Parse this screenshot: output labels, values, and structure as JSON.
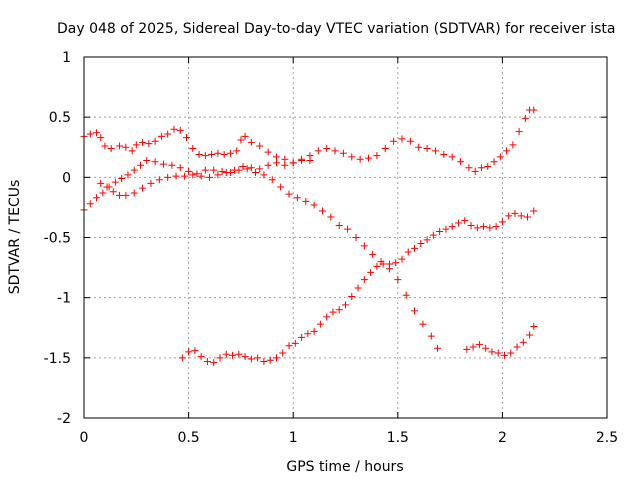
{
  "chart_data": {
    "type": "scatter",
    "title": "Day 048 of 2025, Sidereal Day-to-day VTEC variation (SDTVAR) for receiver ista",
    "xlabel": "GPS time / hours",
    "ylabel": "SDTVAR / TECUs",
    "xlim": [
      0,
      2.5
    ],
    "ylim": [
      -2,
      1
    ],
    "xticks": [
      "0",
      "0.5",
      "1",
      "1.5",
      "2",
      "2.5"
    ],
    "yticks": [
      "-2",
      "-1.5",
      "-1",
      "-0.5",
      "0",
      "0.5",
      "1"
    ],
    "grid": true,
    "marker": "+",
    "marker_color": "#ff0000",
    "series": [
      {
        "points": [
          [
            0.0,
            0.34
          ],
          [
            0.03,
            0.36
          ],
          [
            0.06,
            0.37
          ],
          [
            0.08,
            0.33
          ],
          [
            0.1,
            0.26
          ],
          [
            0.13,
            0.24
          ],
          [
            0.17,
            0.26
          ],
          [
            0.2,
            0.25
          ],
          [
            0.23,
            0.22
          ],
          [
            0.25,
            0.27
          ],
          [
            0.28,
            0.29
          ],
          [
            0.31,
            0.28
          ],
          [
            0.34,
            0.3
          ],
          [
            0.37,
            0.34
          ],
          [
            0.4,
            0.36
          ],
          [
            0.43,
            0.4
          ],
          [
            0.46,
            0.39
          ],
          [
            0.49,
            0.33
          ],
          [
            0.52,
            0.24
          ],
          [
            0.55,
            0.19
          ],
          [
            0.58,
            0.18
          ],
          [
            0.61,
            0.19
          ],
          [
            0.64,
            0.2
          ],
          [
            0.67,
            0.19
          ],
          [
            0.7,
            0.2
          ],
          [
            0.73,
            0.22
          ],
          [
            0.75,
            0.31
          ],
          [
            0.77,
            0.34
          ],
          [
            0.8,
            0.29
          ],
          [
            0.84,
            0.26
          ],
          [
            0.88,
            0.21
          ],
          [
            0.92,
            0.17
          ],
          [
            0.96,
            0.15
          ],
          [
            1.0,
            0.12
          ],
          [
            1.04,
            0.14
          ],
          [
            1.08,
            0.18
          ],
          [
            1.12,
            0.22
          ],
          [
            1.16,
            0.24
          ],
          [
            1.2,
            0.22
          ],
          [
            1.24,
            0.2
          ],
          [
            1.28,
            0.17
          ],
          [
            1.32,
            0.15
          ],
          [
            1.36,
            0.16
          ],
          [
            1.4,
            0.18
          ],
          [
            1.44,
            0.24
          ],
          [
            1.48,
            0.3
          ],
          [
            1.52,
            0.32
          ],
          [
            1.56,
            0.3
          ],
          [
            1.6,
            0.25
          ],
          [
            1.64,
            0.24
          ],
          [
            1.68,
            0.22
          ],
          [
            1.72,
            0.19
          ],
          [
            1.76,
            0.17
          ],
          [
            1.8,
            0.13
          ],
          [
            1.84,
            0.08
          ],
          [
            1.87,
            0.05
          ],
          [
            1.9,
            0.08
          ],
          [
            1.93,
            0.09
          ],
          [
            1.96,
            0.13
          ],
          [
            1.99,
            0.17
          ],
          [
            2.02,
            0.22
          ],
          [
            2.05,
            0.27
          ],
          [
            2.08,
            0.38
          ],
          [
            2.11,
            0.49
          ],
          [
            2.13,
            0.56
          ],
          [
            2.15,
            0.56
          ]
        ]
      },
      {
        "points": [
          [
            0.0,
            -0.27
          ],
          [
            0.03,
            -0.22
          ],
          [
            0.06,
            -0.17
          ],
          [
            0.09,
            -0.13
          ],
          [
            0.12,
            -0.08
          ],
          [
            0.15,
            -0.04
          ],
          [
            0.18,
            -0.01
          ],
          [
            0.21,
            0.02
          ],
          [
            0.24,
            0.06
          ],
          [
            0.27,
            0.1
          ],
          [
            0.3,
            0.14
          ],
          [
            0.34,
            0.13
          ],
          [
            0.38,
            0.11
          ],
          [
            0.42,
            0.1
          ],
          [
            0.46,
            0.08
          ],
          [
            0.5,
            0.05
          ],
          [
            0.54,
            0.03
          ],
          [
            0.58,
            0.06
          ],
          [
            0.62,
            0.06
          ],
          [
            0.66,
            0.05
          ],
          [
            0.7,
            0.04
          ],
          [
            0.74,
            0.06
          ],
          [
            0.78,
            0.07
          ],
          [
            0.82,
            0.04
          ],
          [
            0.86,
            0.02
          ],
          [
            0.9,
            -0.02
          ],
          [
            0.94,
            -0.08
          ],
          [
            0.98,
            -0.14
          ],
          [
            1.02,
            -0.17
          ],
          [
            1.06,
            -0.2
          ],
          [
            1.1,
            -0.23
          ],
          [
            1.14,
            -0.28
          ],
          [
            1.18,
            -0.33
          ],
          [
            1.22,
            -0.4
          ],
          [
            1.26,
            -0.43
          ],
          [
            1.3,
            -0.5
          ],
          [
            1.34,
            -0.57
          ],
          [
            1.38,
            -0.64
          ],
          [
            1.42,
            -0.7
          ],
          [
            1.46,
            -0.76
          ],
          [
            1.5,
            -0.85
          ],
          [
            1.54,
            -0.98
          ],
          [
            1.58,
            -1.11
          ],
          [
            1.62,
            -1.22
          ],
          [
            1.66,
            -1.32
          ],
          [
            1.69,
            -1.42
          ]
        ]
      },
      {
        "points": [
          [
            0.08,
            -0.05
          ],
          [
            0.11,
            -0.08
          ],
          [
            0.14,
            -0.12
          ],
          [
            0.17,
            -0.15
          ],
          [
            0.2,
            -0.15
          ],
          [
            0.24,
            -0.13
          ],
          [
            0.28,
            -0.09
          ],
          [
            0.32,
            -0.05
          ],
          [
            0.36,
            -0.02
          ],
          [
            0.4,
            0.0
          ],
          [
            0.44,
            0.01
          ],
          [
            0.48,
            0.01
          ],
          [
            0.52,
            0.02
          ],
          [
            0.56,
            0.01
          ],
          [
            0.6,
            0.0
          ],
          [
            0.64,
            0.02
          ],
          [
            0.68,
            0.04
          ],
          [
            0.72,
            0.06
          ],
          [
            0.76,
            0.09
          ],
          [
            0.8,
            0.08
          ],
          [
            0.84,
            0.07
          ],
          [
            0.88,
            0.1
          ],
          [
            0.92,
            0.12
          ],
          [
            0.96,
            0.1
          ],
          [
            1.0,
            0.12
          ],
          [
            1.04,
            0.15
          ],
          [
            1.08,
            0.14
          ]
        ]
      },
      {
        "points": [
          [
            0.47,
            -1.5
          ],
          [
            0.5,
            -1.45
          ],
          [
            0.53,
            -1.44
          ],
          [
            0.56,
            -1.49
          ],
          [
            0.59,
            -1.53
          ],
          [
            0.62,
            -1.54
          ],
          [
            0.65,
            -1.5
          ],
          [
            0.68,
            -1.47
          ],
          [
            0.71,
            -1.48
          ],
          [
            0.74,
            -1.47
          ],
          [
            0.77,
            -1.49
          ],
          [
            0.8,
            -1.51
          ],
          [
            0.83,
            -1.5
          ],
          [
            0.86,
            -1.53
          ],
          [
            0.89,
            -1.52
          ],
          [
            0.92,
            -1.5
          ],
          [
            0.95,
            -1.46
          ],
          [
            0.98,
            -1.4
          ],
          [
            1.01,
            -1.38
          ],
          [
            1.04,
            -1.33
          ],
          [
            1.07,
            -1.3
          ],
          [
            1.1,
            -1.28
          ],
          [
            1.13,
            -1.22
          ],
          [
            1.16,
            -1.16
          ],
          [
            1.19,
            -1.12
          ],
          [
            1.22,
            -1.1
          ],
          [
            1.25,
            -1.06
          ],
          [
            1.28,
            -0.99
          ],
          [
            1.31,
            -0.92
          ],
          [
            1.34,
            -0.85
          ],
          [
            1.37,
            -0.79
          ],
          [
            1.4,
            -0.74
          ],
          [
            1.43,
            -0.72
          ],
          [
            1.46,
            -0.72
          ],
          [
            1.49,
            -0.71
          ],
          [
            1.52,
            -0.68
          ],
          [
            1.55,
            -0.62
          ],
          [
            1.58,
            -0.59
          ],
          [
            1.61,
            -0.55
          ],
          [
            1.64,
            -0.52
          ],
          [
            1.67,
            -0.48
          ],
          [
            1.7,
            -0.45
          ],
          [
            1.73,
            -0.43
          ],
          [
            1.76,
            -0.41
          ],
          [
            1.79,
            -0.38
          ],
          [
            1.82,
            -0.36
          ],
          [
            1.85,
            -0.4
          ],
          [
            1.88,
            -0.42
          ],
          [
            1.91,
            -0.41
          ],
          [
            1.94,
            -0.42
          ],
          [
            1.97,
            -0.41
          ],
          [
            2.0,
            -0.37
          ],
          [
            2.03,
            -0.32
          ],
          [
            2.06,
            -0.3
          ],
          [
            2.09,
            -0.32
          ],
          [
            2.12,
            -0.33
          ],
          [
            2.15,
            -0.28
          ]
        ]
      },
      {
        "points": [
          [
            1.83,
            -1.43
          ],
          [
            1.86,
            -1.41
          ],
          [
            1.89,
            -1.39
          ],
          [
            1.92,
            -1.42
          ],
          [
            1.95,
            -1.45
          ],
          [
            1.98,
            -1.46
          ],
          [
            2.01,
            -1.48
          ],
          [
            2.04,
            -1.46
          ],
          [
            2.07,
            -1.41
          ],
          [
            2.1,
            -1.37
          ],
          [
            2.13,
            -1.31
          ],
          [
            2.15,
            -1.24
          ]
        ]
      }
    ]
  }
}
